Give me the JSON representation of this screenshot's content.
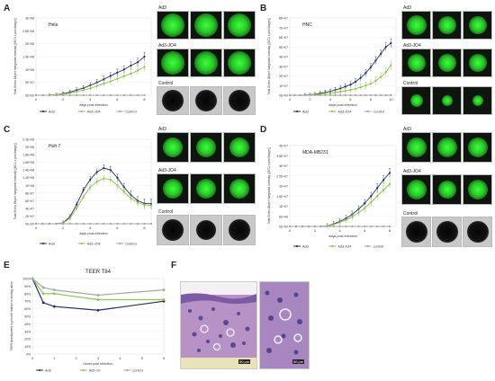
{
  "panels": {
    "A": {
      "letter": "A",
      "title": "Hela"
    },
    "B": {
      "letter": "B",
      "title": "HNC"
    },
    "C": {
      "letter": "C",
      "title": "Huh 7"
    },
    "D": {
      "letter": "D",
      "title": "MDA-MB231"
    },
    "E": {
      "letter": "E",
      "title": "TEER T84"
    },
    "F": {
      "letter": "F"
    }
  },
  "thumb_labels": {
    "ad3": "Ad3",
    "ad3jo4": "Ad3-JO4",
    "control": "Control"
  },
  "scale_labels": [
    "50 μm",
    "50 μm"
  ],
  "colors": {
    "ad3": "#1f2f6b",
    "ad3jo4": "#8cc63f",
    "control": "#a6a6a6",
    "histo_bg": "#c9a3c9",
    "histo_cells": "#5b4a9a"
  },
  "chart_data": [
    {
      "type": "line",
      "title": "Hela",
      "xlabel": "days post infection",
      "ylabel": "Total Green Object Integrated Intensity [(GCU x μm²/Image)]",
      "ylim": [
        0,
        300000000.0
      ],
      "y_ticks": [
        "0E+00",
        "5E+07",
        "1E+08",
        "1.5E+08",
        "2E+08",
        "2.5E+08",
        "3E+08"
      ],
      "x_ticks": [
        "0",
        "2",
        "4",
        "6",
        "8"
      ],
      "xlim": [
        0,
        8.5
      ],
      "x": [
        0,
        0.5,
        1,
        1.5,
        2,
        2.5,
        3,
        3.5,
        4,
        4.5,
        5,
        5.5,
        6,
        6.5,
        7,
        7.5,
        8
      ],
      "series": [
        {
          "name": "Ad3",
          "values": [
            0,
            0,
            500000.0,
            2000000.0,
            6000000.0,
            12000000.0,
            20000000.0,
            28000000.0,
            38000000.0,
            50000000.0,
            62000000.0,
            75000000.0,
            88000000.0,
            100000000.0,
            115000000.0,
            128000000.0,
            150000000.0
          ]
        },
        {
          "name": "Ad3-JO4",
          "values": [
            0,
            0,
            300000.0,
            1500000.0,
            4000000.0,
            8000000.0,
            14000000.0,
            20000000.0,
            27000000.0,
            36000000.0,
            45000000.0,
            54000000.0,
            64000000.0,
            74000000.0,
            84000000.0,
            96000000.0,
            110000000.0
          ]
        },
        {
          "name": "Control",
          "values": [
            0,
            0,
            0,
            0,
            0,
            0,
            0,
            0,
            0,
            0,
            0,
            0,
            0,
            0,
            0,
            0,
            0
          ]
        }
      ],
      "legend": [
        "Ad3",
        "Ad3-JO4",
        "Control"
      ],
      "legend_position": "bottom"
    },
    {
      "type": "line",
      "title": "HNC",
      "xlabel": "days post infection",
      "ylabel": "Total Green Object Integrated Intensity [(GCU x μm²/Image)]",
      "ylim": [
        0,
        80000000.0
      ],
      "y_ticks": [
        "0E+00",
        "1E+07",
        "2E+07",
        "3E+07",
        "4E+07",
        "5E+07",
        "6E+07",
        "7E+07",
        "8E+07"
      ],
      "x_ticks": [
        "0",
        "2",
        "4",
        "6",
        "8",
        "10"
      ],
      "xlim": [
        0,
        10.5
      ],
      "x": [
        0,
        0.5,
        1,
        1.5,
        2,
        2.5,
        3,
        3.5,
        4,
        4.5,
        5,
        5.5,
        6,
        6.5,
        7,
        7.5,
        8,
        8.5,
        9,
        9.5,
        10
      ],
      "series": [
        {
          "name": "Ad3",
          "values": [
            0,
            0,
            0,
            200000.0,
            500000.0,
            1000000.0,
            2000000.0,
            3000000.0,
            4000000.0,
            5500000.0,
            7000000.0,
            9000000.0,
            11000000.0,
            14000000.0,
            18000000.0,
            23000000.0,
            29000000.0,
            36000000.0,
            43000000.0,
            50000000.0,
            54000000.0
          ]
        },
        {
          "name": "Ad3-JO4",
          "values": [
            0,
            0,
            0,
            100000.0,
            300000.0,
            600000.0,
            1000000.0,
            1500000.0,
            2000000.0,
            2800000.0,
            3600000.0,
            4500000.0,
            5500000.0,
            6800000.0,
            8200000.0,
            10000000.0,
            12000000.0,
            15000000.0,
            19000000.0,
            24000000.0,
            31000000.0
          ]
        },
        {
          "name": "Control",
          "values": [
            0,
            0,
            0,
            0,
            0,
            0,
            0,
            0,
            0,
            0,
            0,
            0,
            0,
            0,
            0,
            0,
            0,
            0,
            0,
            0,
            0
          ]
        }
      ],
      "legend": [
        "Ad3",
        "Ad3-JO4",
        "Control"
      ],
      "legend_position": "bottom"
    },
    {
      "type": "line",
      "title": "Huh 7",
      "xlabel": "days post infection",
      "ylabel": "Total Green Object Integrated Intensity [(GCU x μm²/Image)]",
      "ylim": [
        0,
        220000000.0
      ],
      "y_ticks": [
        "0E+00",
        "2E+07",
        "4E+07",
        "6E+07",
        "8E+07",
        "1E+08",
        "1.2E+08",
        "1.4E+08",
        "1.6E+08",
        "1.8E+08",
        "2E+08",
        "2.2E+08"
      ],
      "x_ticks": [
        "0",
        "2",
        "4",
        "6",
        "8"
      ],
      "xlim": [
        0,
        8.5
      ],
      "x": [
        0,
        0.5,
        1,
        1.5,
        2,
        2.5,
        3,
        3.5,
        4,
        4.5,
        5,
        5.5,
        6,
        6.5,
        7,
        7.5,
        8,
        8.5
      ],
      "series": [
        {
          "name": "Ad3",
          "values": [
            0,
            0,
            0,
            0,
            2000000.0,
            18000000.0,
            50000000.0,
            88000000.0,
            115000000.0,
            135000000.0,
            145000000.0,
            140000000.0,
            120000000.0,
            95000000.0,
            75000000.0,
            60000000.0,
            53000000.0,
            52000000.0
          ]
        },
        {
          "name": "Ad3-JO4",
          "values": [
            0,
            0,
            0,
            0,
            1500000.0,
            14000000.0,
            40000000.0,
            70000000.0,
            95000000.0,
            110000000.0,
            118000000.0,
            115000000.0,
            100000000.0,
            83000000.0,
            66000000.0,
            55000000.0,
            49000000.0,
            48000000.0
          ]
        },
        {
          "name": "Control",
          "values": [
            0,
            0,
            0,
            0,
            0,
            0,
            0,
            0,
            0,
            0,
            0,
            0,
            0,
            0,
            0,
            0,
            0,
            0
          ]
        }
      ],
      "legend": [
        "Ad3",
        "Ad3-JO4",
        "Control"
      ],
      "legend_position": "bottom"
    },
    {
      "type": "line",
      "title": "MDA-MB231",
      "xlabel": "days post infection",
      "ylabel": "Total Green Object Integrated Intensity [(GCU x μm²/Image)]",
      "ylim": [
        0,
        40000000.0
      ],
      "y_ticks": [
        "0E+00",
        "5E+06",
        "1E+07",
        "1.5E+07",
        "2E+07",
        "2.5E+07",
        "3E+07",
        "3.5E+07",
        "4E+07"
      ],
      "x_ticks": [
        "0",
        "2",
        "4",
        "6",
        "8"
      ],
      "xlim": [
        0,
        8.5
      ],
      "x": [
        0,
        0.5,
        1,
        1.5,
        2,
        2.5,
        3,
        3.5,
        4,
        4.5,
        5,
        5.5,
        6,
        6.5,
        7,
        7.5,
        8
      ],
      "series": [
        {
          "name": "Ad3",
          "values": [
            0,
            0,
            0,
            0,
            0,
            0,
            200000.0,
            1200000.0,
            2500000.0,
            4000000.0,
            6000000.0,
            8500000.0,
            11500000.0,
            15000000.0,
            19000000.0,
            23000000.0,
            26500000.0
          ]
        },
        {
          "name": "Ad3-JO4",
          "values": [
            0,
            0,
            0,
            0,
            0,
            0,
            100000.0,
            900000.0,
            2000000.0,
            3200000.0,
            4800000.0,
            6800000.0,
            9000000.0,
            12000000.0,
            15000000.0,
            18000000.0,
            21000000.0
          ]
        },
        {
          "name": "control",
          "values": [
            0,
            0,
            0,
            0,
            0,
            0,
            0,
            0,
            0,
            0,
            0,
            0,
            0,
            0,
            0,
            0,
            0
          ]
        }
      ],
      "legend": [
        "Ad3",
        "Ad3-JO4",
        "control"
      ],
      "legend_position": "bottom"
    },
    {
      "type": "line",
      "title": "TEER T84",
      "xlabel": "hours post infection",
      "ylabel": "TEER development in percent relative to starting value",
      "ylim": [
        0,
        100
      ],
      "y_ticks": [
        "0%",
        "10%",
        "20%",
        "30%",
        "40%",
        "50%",
        "60%",
        "70%",
        "80%",
        "90%",
        "100%"
      ],
      "x_ticks": [
        "0",
        "1",
        "2",
        "3",
        "4",
        "5",
        "6"
      ],
      "xlim": [
        0,
        6
      ],
      "x": [
        0,
        0.5,
        1,
        3,
        6
      ],
      "series": [
        {
          "name": "Ad3",
          "values": [
            100,
            68,
            63,
            58,
            70
          ]
        },
        {
          "name": "Ad3-JO",
          "values": [
            100,
            80,
            80,
            72,
            72
          ]
        },
        {
          "name": "control",
          "values": [
            100,
            88,
            85,
            78,
            85
          ]
        }
      ],
      "legend": [
        "Ad3",
        "Ad3-JO",
        "control"
      ],
      "legend_position": "bottom"
    }
  ]
}
